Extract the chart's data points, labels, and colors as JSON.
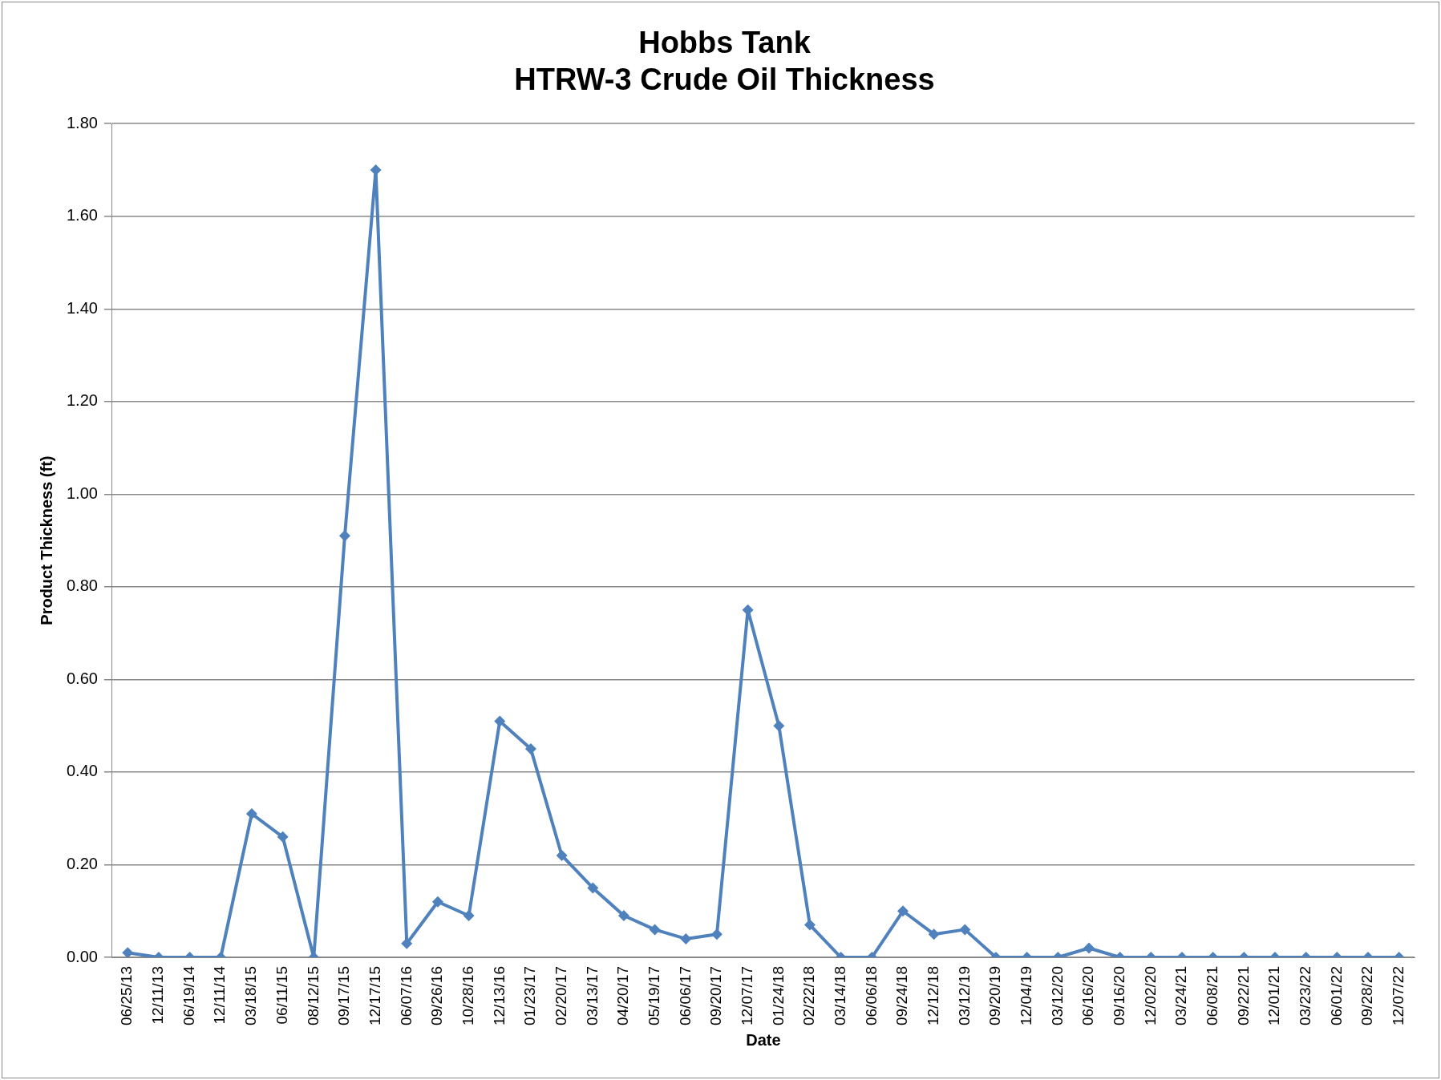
{
  "chart_data": {
    "type": "line",
    "title": [
      "Hobbs Tank",
      "HTRW-3 Crude Oil Thickness"
    ],
    "xlabel": "Date",
    "ylabel": "Product Thickness (ft)",
    "categories": [
      "06/25/13",
      "12/11/13",
      "06/19/14",
      "12/11/14",
      "03/18/15",
      "06/11/15",
      "08/12/15",
      "09/17/15",
      "12/17/15",
      "06/07/16",
      "09/26/16",
      "10/28/16",
      "12/13/16",
      "01/23/17",
      "02/20/17",
      "03/13/17",
      "04/20/17",
      "05/19/17",
      "06/06/17",
      "09/20/17",
      "12/07/17",
      "01/24/18",
      "02/22/18",
      "03/14/18",
      "06/06/18",
      "09/24/18",
      "12/12/18",
      "03/12/19",
      "09/20/19",
      "12/04/19",
      "03/12/20",
      "06/16/20",
      "09/16/20",
      "12/02/20",
      "03/24/21",
      "06/08/21",
      "09/22/21",
      "12/01/21",
      "03/23/22",
      "06/01/22",
      "09/28/22",
      "12/07/22"
    ],
    "series": [
      {
        "color": "#4f81bd",
        "values": [
          0.01,
          0,
          0,
          0,
          0.31,
          0.26,
          0,
          0.91,
          1.7,
          0.03,
          0.12,
          0.09,
          0.51,
          0.45,
          0.22,
          0.15,
          0.09,
          0.06,
          0.04,
          0.05,
          0.75,
          0.5,
          0.07,
          0,
          0,
          0.1,
          0.05,
          0.06,
          0,
          0,
          0,
          0.02,
          0,
          0,
          0,
          0,
          0,
          0,
          0,
          0,
          0,
          0
        ]
      }
    ],
    "ylim": [
      0,
      1.8
    ],
    "yticks": [
      {
        "value": 0,
        "label": "0.00"
      },
      {
        "value": 0.2,
        "label": "0.20"
      },
      {
        "value": 0.4,
        "label": "0.40"
      },
      {
        "value": 0.6,
        "label": "0.60"
      },
      {
        "value": 0.8,
        "label": "0.80"
      },
      {
        "value": 1.0,
        "label": "1.00"
      },
      {
        "value": 1.2,
        "label": "1.20"
      },
      {
        "value": 1.4,
        "label": "1.40"
      },
      {
        "value": 1.6,
        "label": "1.60"
      },
      {
        "value": 1.8,
        "label": "1.80"
      }
    ],
    "grid": "y",
    "legend": false,
    "marker": "diamond",
    "line_style": "solid"
  }
}
